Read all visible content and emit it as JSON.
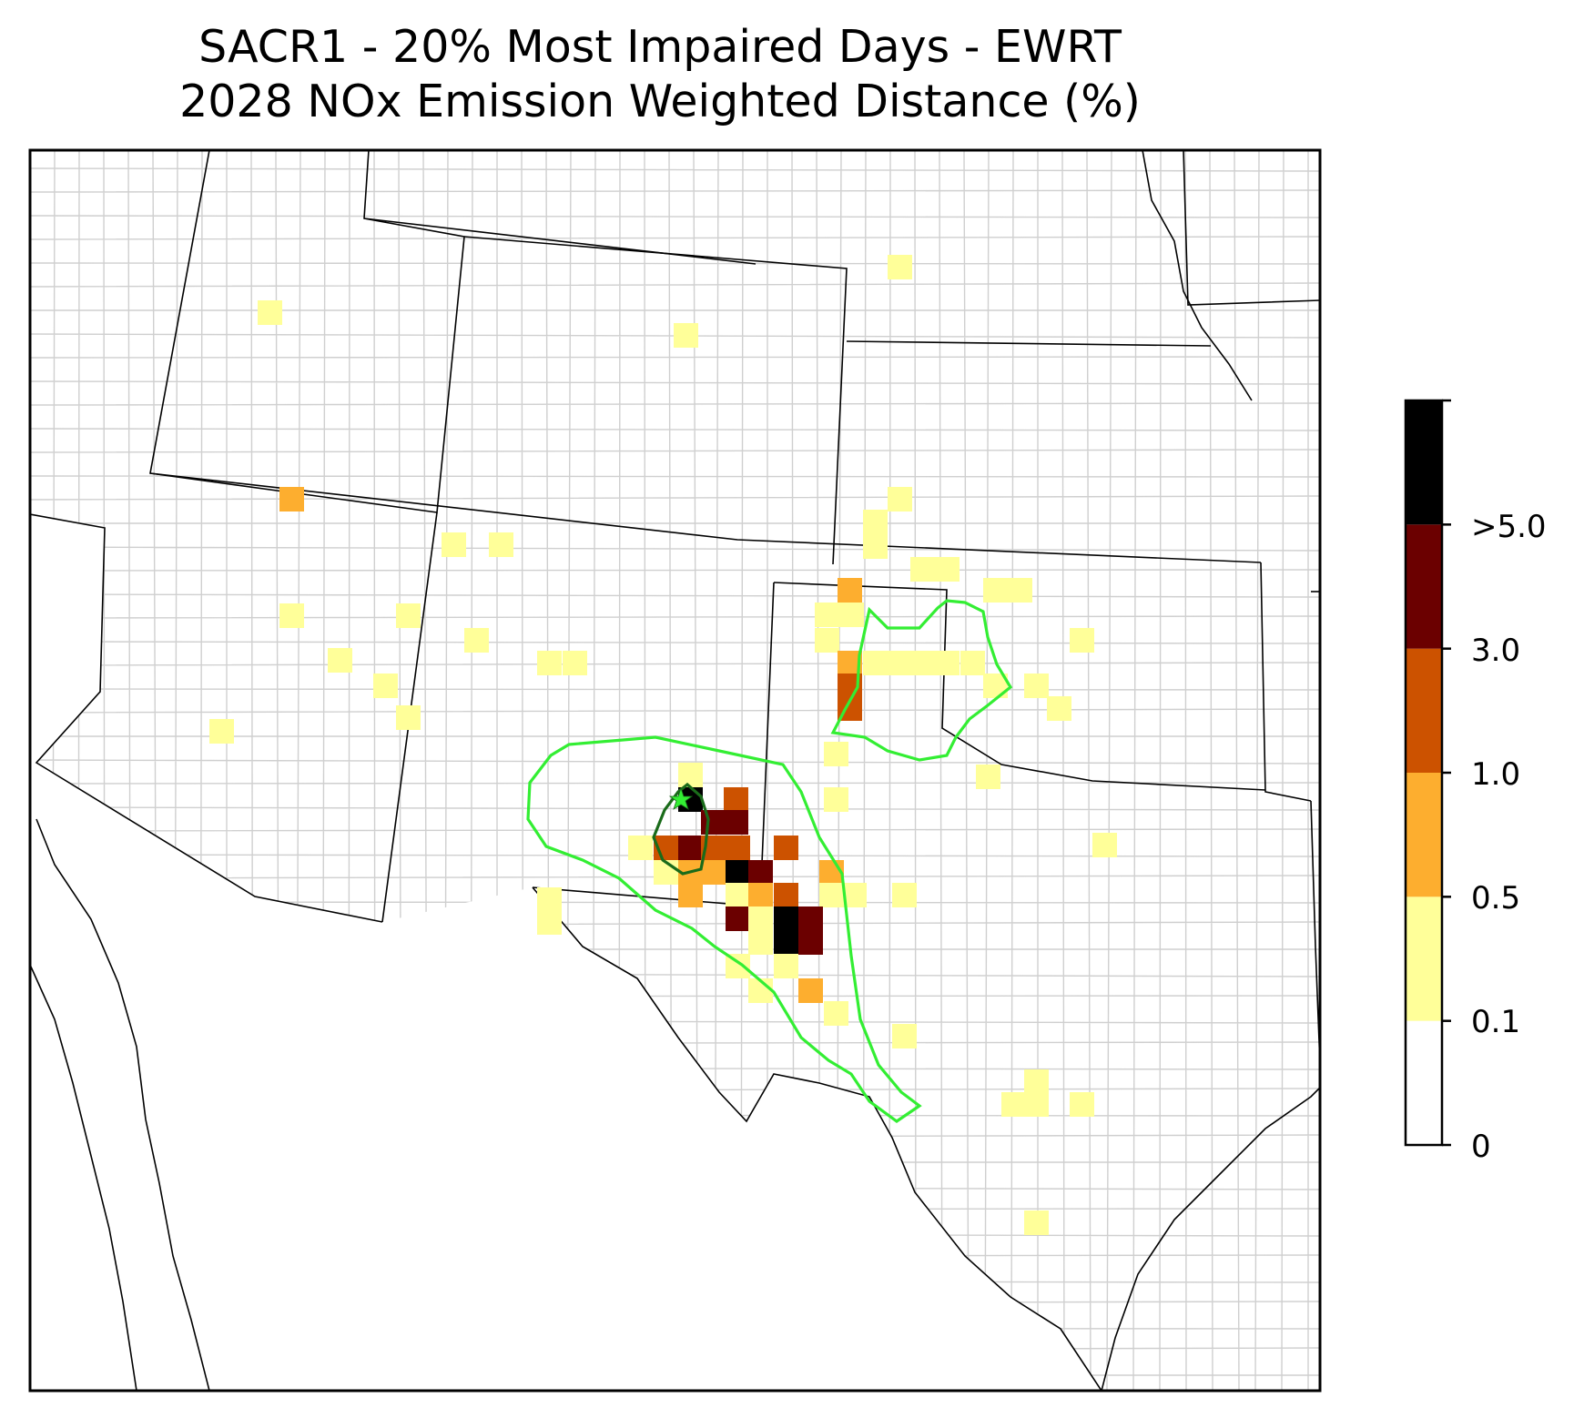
{
  "title": {
    "line1": "SACR1 - 20% Most Impaired Days - EWRT",
    "line2": "2028 NOx Emission Weighted Distance (%)"
  },
  "colorbar": {
    "bins": [
      {
        "from": "0",
        "to": "0.1",
        "color": "#ffffff"
      },
      {
        "from": "0.1",
        "to": "0.5",
        "color": "#ffff99"
      },
      {
        "from": "0.5",
        "to": "1.0",
        "color": "#fdae2f"
      },
      {
        "from": "1.0",
        "to": "3.0",
        "color": "#cc5200"
      },
      {
        "from": "3.0",
        "to": ">5.0",
        "color": "#6b0000"
      },
      {
        "from": ">5.0",
        "to": "",
        "color": "#000000"
      }
    ],
    "tick_labels": [
      "0",
      "0.1",
      "0.5",
      "1.0",
      "3.0",
      ">5.0"
    ]
  },
  "legend_colors": {
    "contour_outer": "#33ee33",
    "contour_inner": "#1a6b1a",
    "site_marker": "#33ee33",
    "state_border": "#000000",
    "county_border": "#a8a8a8"
  },
  "map": {
    "site": "SACR1",
    "site_marker_icon": "star",
    "region": "Southwest / South Central United States"
  }
}
